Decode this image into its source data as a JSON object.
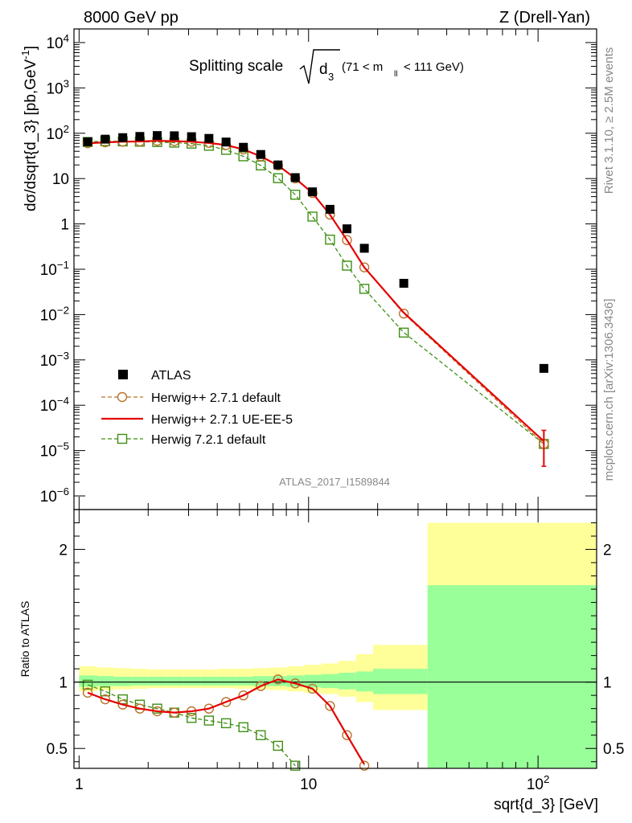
{
  "header": {
    "left": "8000 GeV pp",
    "right": "Z (Drell-Yan)"
  },
  "side_labels": {
    "rivet": "Rivet 3.1.10, ≥ 2.5M events",
    "mcplots": "mcplots.cern.ch [arXiv:1306.3436]"
  },
  "watermark": "ATLAS_2017_I1589844",
  "colors": {
    "data": "#000000",
    "herwigpp_default": "#b8732c",
    "herwigpp_ueee5": "#e50000",
    "herwig7": "#3f8f14",
    "band_outer": "#ffff99",
    "band_inner": "#99ff99"
  },
  "chart_data": [
    {
      "type": "scatter",
      "panel": "main",
      "title_main": "Splitting scale",
      "title_sqrt": "d",
      "title_sub": "3",
      "title_cut_a": "(71 < m",
      "title_cut_sub": "ll",
      "title_cut_b": "< 111 GeV)",
      "ylabel_main": "dσ/dsqrt{d_3} [pb,GeV",
      "ylabel_sup": "-1",
      "ylabel_end": "]",
      "x_scale": "log",
      "y_scale": "log",
      "xlim": [
        0.95,
        180
      ],
      "ylim": [
        5e-07,
        20000
      ],
      "y_ticks": [
        {
          "base": "10",
          "exp": "4"
        },
        {
          "base": "10",
          "exp": "3"
        },
        {
          "base": "10",
          "exp": "2"
        },
        {
          "base": "10",
          "exp": ""
        },
        {
          "base": "1",
          "exp": ""
        },
        {
          "base": "10",
          "exp": "−1"
        },
        {
          "base": "10",
          "exp": "−2"
        },
        {
          "base": "10",
          "exp": "−3"
        },
        {
          "base": "10",
          "exp": "−4"
        },
        {
          "base": "10",
          "exp": "−5"
        },
        {
          "base": "10",
          "exp": "−6"
        }
      ],
      "legend_position": "bottom-left",
      "series": [
        {
          "name": "ATLAS",
          "style": "data",
          "x": [
            1.09,
            1.3,
            1.55,
            1.84,
            2.19,
            2.6,
            3.09,
            3.68,
            4.37,
            5.2,
            6.19,
            7.36,
            8.75,
            10.4,
            12.4,
            14.7,
            17.5,
            26.0,
            106.0
          ],
          "y": [
            65,
            74,
            80,
            85,
            89,
            88,
            84,
            77,
            64,
            49,
            34,
            20,
            10.5,
            5.1,
            2.1,
            0.78,
            0.29,
            0.049,
            0.00065
          ]
        },
        {
          "name": "Herwig++ 2.7.1 default",
          "style": "herwigpp_default",
          "x": [
            1.09,
            1.3,
            1.55,
            1.84,
            2.19,
            2.6,
            3.09,
            3.68,
            4.37,
            5.2,
            6.19,
            7.36,
            8.75,
            10.4,
            12.4,
            14.7,
            17.5,
            26.0,
            106.0
          ],
          "y": [
            60,
            63,
            65,
            66,
            68,
            67,
            65,
            61,
            55,
            44,
            31,
            19.5,
            10.1,
            4.8,
            1.6,
            0.44,
            0.11,
            0.0105,
            1.4e-05
          ]
        },
        {
          "name": "Herwig++ 2.7.1 UE-EE-5",
          "style": "herwigpp_ueee5",
          "x": [
            1.09,
            1.3,
            1.55,
            1.84,
            2.19,
            2.6,
            3.09,
            3.68,
            4.37,
            5.2,
            6.19,
            7.36,
            8.75,
            10.4,
            12.4,
            14.7,
            17.5,
            26.0,
            106.0
          ],
          "y": [
            60,
            63,
            65,
            66,
            68,
            67,
            65,
            61,
            55,
            44,
            31,
            19.5,
            10.1,
            4.8,
            1.6,
            0.44,
            0.11,
            0.011,
            1.6e-05
          ]
        },
        {
          "name": "Herwig 7.2.1 default",
          "style": "herwig7",
          "x": [
            1.09,
            1.3,
            1.55,
            1.84,
            2.19,
            2.6,
            3.09,
            3.68,
            4.37,
            5.2,
            6.19,
            7.36,
            8.75,
            10.4,
            12.4,
            14.7,
            17.5,
            26.0,
            106.0
          ],
          "y": [
            64,
            67,
            66,
            65,
            64,
            62,
            59,
            53,
            43,
            31,
            19.5,
            10.2,
            4.4,
            1.45,
            0.45,
            0.12,
            0.037,
            0.004,
            1.4e-05
          ]
        }
      ]
    },
    {
      "type": "line",
      "panel": "ratio",
      "ylabel": "Ratio to ATLAS",
      "xlabel": "sqrt{d_3} [GeV]",
      "x_scale": "log",
      "xlim": [
        0.95,
        180
      ],
      "ylim": [
        0.35,
        2.3
      ],
      "y_ticks": [
        "2",
        "1",
        "0.5"
      ],
      "x_ticks": [
        {
          "base": "1",
          "exp": ""
        },
        {
          "base": "10",
          "exp": ""
        },
        {
          "base": "10",
          "exp": "2"
        }
      ],
      "bands": {
        "edges": [
          1.0,
          1.2,
          1.42,
          1.69,
          2.01,
          2.39,
          2.84,
          3.38,
          4.02,
          4.78,
          5.69,
          6.77,
          8.05,
          9.57,
          11.4,
          13.5,
          16.1,
          19.1,
          33.0,
          180.0
        ],
        "outer_lo": [
          0.93,
          0.94,
          0.945,
          0.95,
          0.955,
          0.955,
          0.955,
          0.955,
          0.955,
          0.95,
          0.945,
          0.94,
          0.93,
          0.92,
          0.91,
          0.89,
          0.85,
          0.79,
          0.35
        ],
        "outer_hi": [
          1.12,
          1.11,
          1.105,
          1.1,
          1.095,
          1.095,
          1.095,
          1.095,
          1.1,
          1.1,
          1.105,
          1.11,
          1.12,
          1.13,
          1.14,
          1.16,
          1.21,
          1.28,
          2.2
        ],
        "inner_lo": [
          0.965,
          0.97,
          0.97,
          0.975,
          0.975,
          0.975,
          0.975,
          0.975,
          0.975,
          0.975,
          0.97,
          0.97,
          0.965,
          0.96,
          0.955,
          0.945,
          0.93,
          0.91,
          0.35
        ],
        "inner_hi": [
          1.05,
          1.045,
          1.04,
          1.04,
          1.04,
          1.04,
          1.04,
          1.04,
          1.04,
          1.04,
          1.045,
          1.045,
          1.05,
          1.055,
          1.06,
          1.07,
          1.08,
          1.1,
          1.73
        ]
      },
      "series": [
        {
          "name": "Herwig++ 2.7.1 default",
          "style": "herwigpp_default",
          "x": [
            1.09,
            1.3,
            1.55,
            1.84,
            2.19,
            2.6,
            3.09,
            3.68,
            4.37,
            5.2,
            6.19,
            7.36,
            8.75,
            10.4,
            12.4,
            14.7,
            17.5
          ],
          "y": [
            0.92,
            0.87,
            0.83,
            0.8,
            0.78,
            0.77,
            0.78,
            0.8,
            0.85,
            0.9,
            0.97,
            1.02,
            0.99,
            0.95,
            0.82,
            0.6,
            0.37
          ]
        },
        {
          "name": "Herwig++ 2.7.1 UE-EE-5",
          "style": "herwigpp_ueee5",
          "x": [
            1.09,
            1.3,
            1.55,
            1.84,
            2.19,
            2.6,
            3.09,
            3.68,
            4.37,
            5.2,
            6.19,
            7.36,
            8.75,
            10.4,
            12.4,
            14.7,
            17.5
          ],
          "y": [
            0.92,
            0.87,
            0.83,
            0.8,
            0.78,
            0.77,
            0.78,
            0.8,
            0.85,
            0.9,
            0.97,
            1.02,
            0.99,
            0.95,
            0.82,
            0.6,
            0.38
          ]
        },
        {
          "name": "Herwig 7.2.1 default",
          "style": "herwig7",
          "x": [
            1.09,
            1.3,
            1.55,
            1.84,
            2.19,
            2.6,
            3.09,
            3.68,
            4.37,
            5.2,
            6.19,
            7.36,
            8.75
          ],
          "y": [
            0.98,
            0.93,
            0.87,
            0.83,
            0.8,
            0.77,
            0.73,
            0.71,
            0.69,
            0.66,
            0.6,
            0.52,
            0.37
          ]
        }
      ]
    }
  ]
}
